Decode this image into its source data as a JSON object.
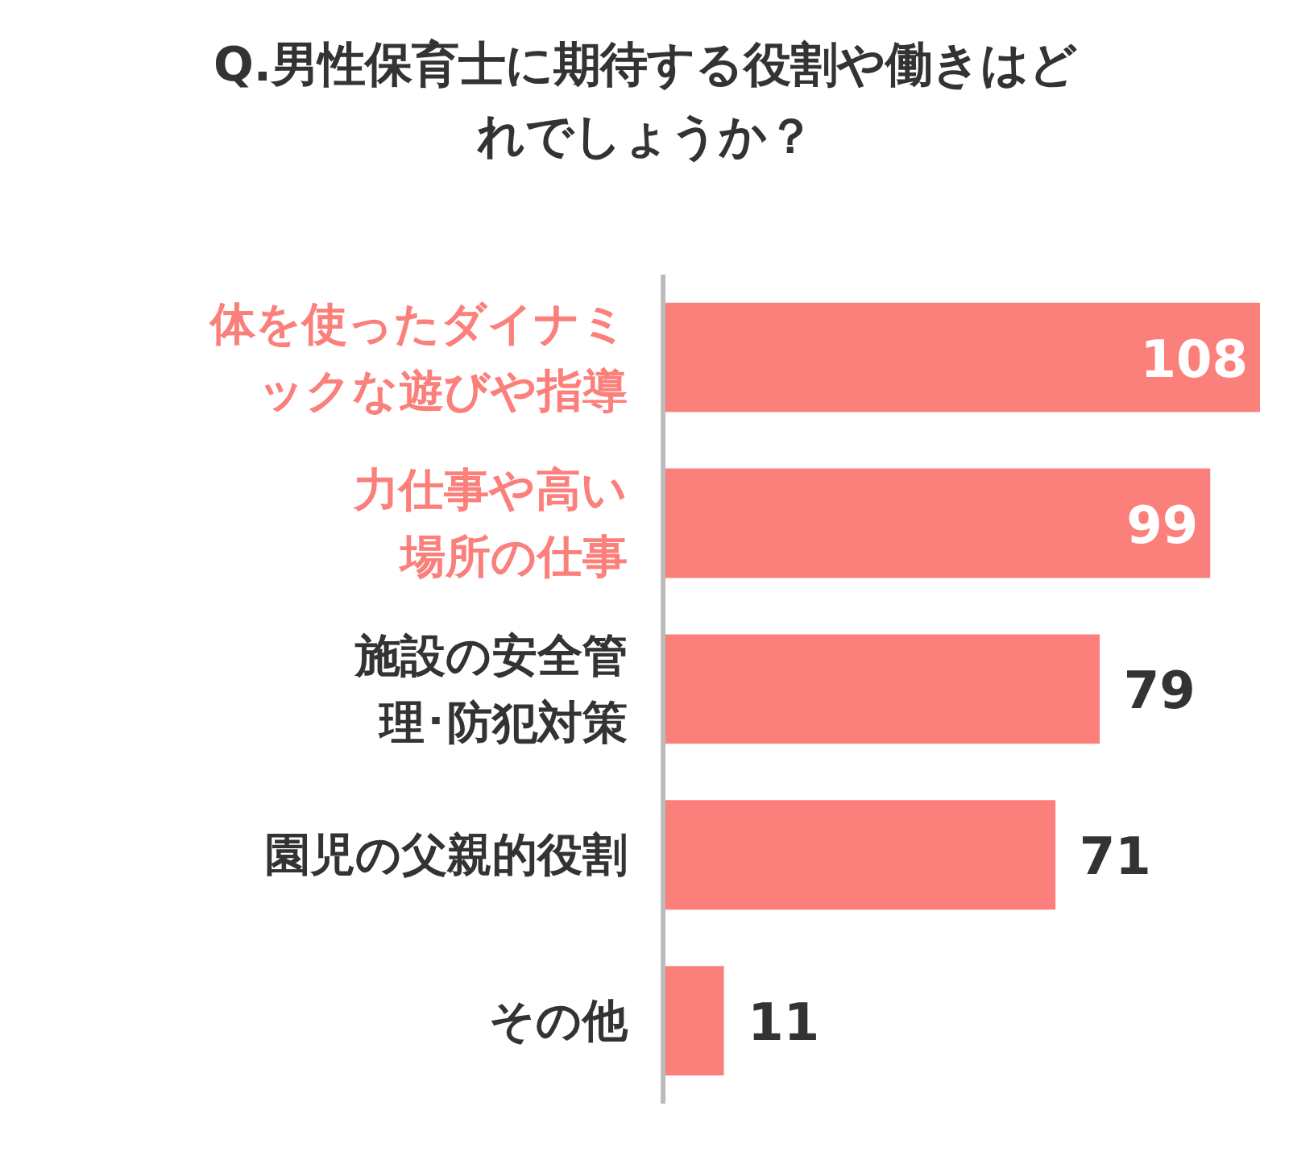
{
  "chart_data": {
    "type": "bar",
    "orientation": "horizontal",
    "title": "Q.男性保育士に期待する役割や働きはどれでしょうか？",
    "categories": [
      "体を使ったダイナミックな遊びや指導",
      "力仕事や高い場所の仕事",
      "施設の安全管理･防犯対策",
      "園児の父親的役割",
      "その他"
    ],
    "values": [
      108,
      99,
      79,
      71,
      11
    ],
    "color": "#fb7f7a",
    "data_labels": true,
    "grid": false
  }
}
